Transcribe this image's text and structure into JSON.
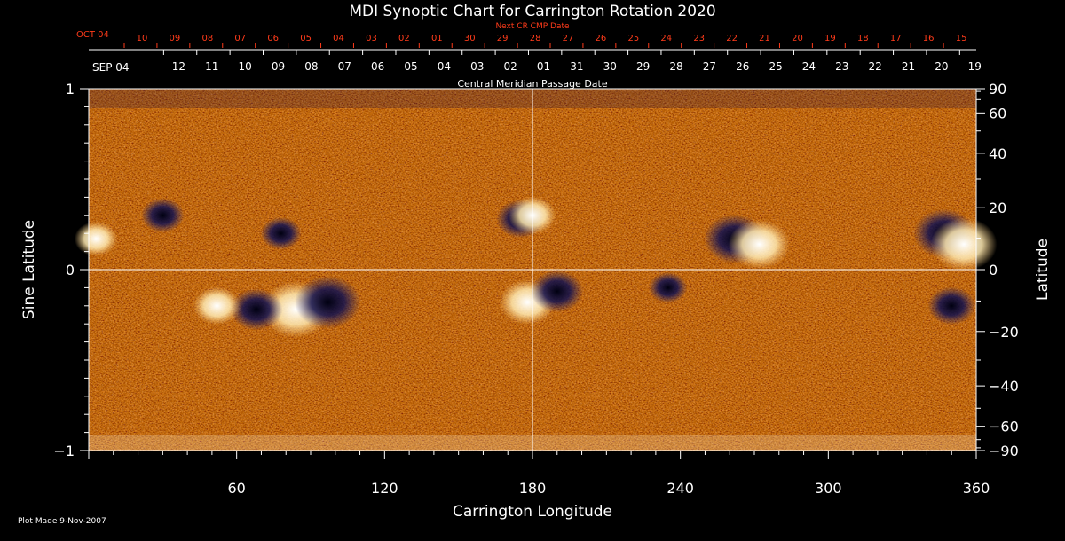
{
  "chart_data": {
    "type": "heatmap",
    "title": "MDI Synoptic Chart for Carrington Rotation 2020",
    "xlabel": "Carrington Longitude",
    "ylabel_left": "Sine Latitude",
    "ylabel_right": "Latitude",
    "xlim": [
      0,
      360
    ],
    "ylim": [
      -1,
      1
    ],
    "x_ticks": [
      60,
      120,
      180,
      240,
      300,
      360
    ],
    "y_left_ticks": [
      {
        "v": 1,
        "label": "1"
      },
      {
        "v": 0,
        "label": "0"
      },
      {
        "v": -1,
        "label": "−1"
      }
    ],
    "y_right_ticks": [
      90,
      60,
      40,
      20,
      0,
      -20,
      -40,
      -60,
      -90
    ],
    "top_axis": {
      "label": "Central Meridian Passage Date",
      "start_label": "SEP 04",
      "dates": [
        "12",
        "11",
        "10",
        "09",
        "08",
        "07",
        "06",
        "05",
        "04",
        "03",
        "02",
        "01",
        "31",
        "30",
        "29",
        "28",
        "27",
        "26",
        "25",
        "24",
        "23",
        "22",
        "21",
        "20",
        "19"
      ]
    },
    "next_axis": {
      "label": "Next CR CMP Date",
      "start_label": "OCT 04",
      "dates": [
        "10",
        "09",
        "08",
        "07",
        "06",
        "05",
        "04",
        "03",
        "02",
        "01",
        "30",
        "29",
        "28",
        "27",
        "26",
        "25",
        "24",
        "23",
        "22",
        "21",
        "20",
        "19",
        "18",
        "17",
        "16",
        "15"
      ]
    },
    "active_regions": [
      {
        "lon": 84,
        "sinlat": -0.22,
        "polarity": "positive",
        "strength": 1.0
      },
      {
        "lon": 97,
        "sinlat": -0.18,
        "polarity": "negative",
        "strength": 0.9
      },
      {
        "lon": 68,
        "sinlat": -0.22,
        "polarity": "negative",
        "strength": 0.6
      },
      {
        "lon": 52,
        "sinlat": -0.2,
        "polarity": "positive",
        "strength": 0.5
      },
      {
        "lon": 175,
        "sinlat": 0.28,
        "polarity": "negative",
        "strength": 0.5
      },
      {
        "lon": 180,
        "sinlat": 0.3,
        "polarity": "positive",
        "strength": 0.5
      },
      {
        "lon": 178,
        "sinlat": -0.18,
        "polarity": "positive",
        "strength": 0.7
      },
      {
        "lon": 190,
        "sinlat": -0.12,
        "polarity": "negative",
        "strength": 0.6
      },
      {
        "lon": 262,
        "sinlat": 0.17,
        "polarity": "negative",
        "strength": 0.8
      },
      {
        "lon": 272,
        "sinlat": 0.14,
        "polarity": "positive",
        "strength": 0.8
      },
      {
        "lon": 347,
        "sinlat": 0.2,
        "polarity": "negative",
        "strength": 0.8
      },
      {
        "lon": 355,
        "sinlat": 0.14,
        "polarity": "positive",
        "strength": 0.9
      },
      {
        "lon": 350,
        "sinlat": -0.2,
        "polarity": "negative",
        "strength": 0.5
      },
      {
        "lon": 30,
        "sinlat": 0.3,
        "polarity": "negative",
        "strength": 0.4
      },
      {
        "lon": 78,
        "sinlat": 0.2,
        "polarity": "negative",
        "strength": 0.35
      },
      {
        "lon": 3,
        "sinlat": 0.17,
        "polarity": "positive",
        "strength": 0.4
      },
      {
        "lon": 235,
        "sinlat": -0.1,
        "polarity": "negative",
        "strength": 0.3
      }
    ],
    "grid": false,
    "colors": {
      "background": "#000000",
      "axis": "#ffffff",
      "next_axis": "#ff3b1a",
      "map_base": "#e05a10"
    }
  },
  "footer": {
    "plot_made": "Plot Made  9-Nov-2007"
  }
}
